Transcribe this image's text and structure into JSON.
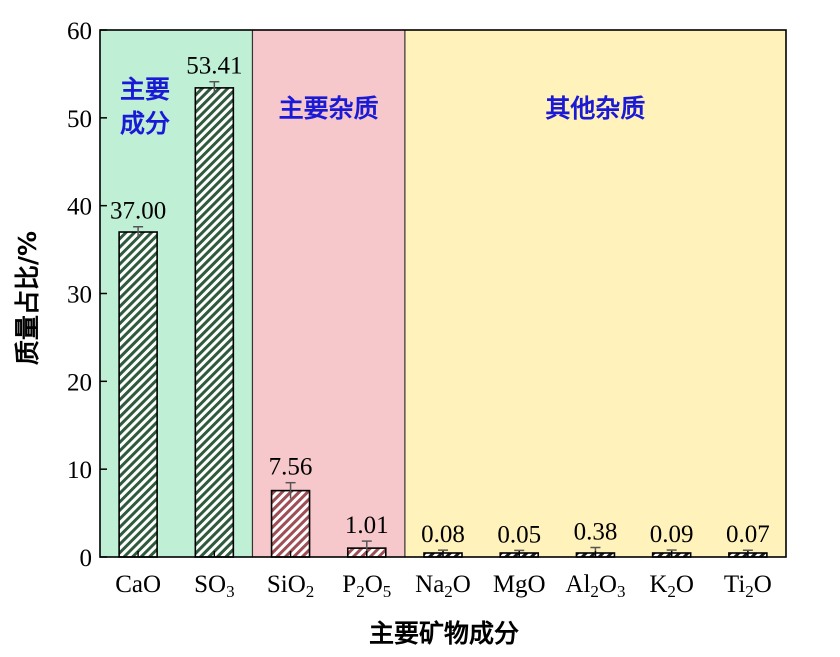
{
  "chart_data": {
    "type": "bar",
    "xlabel": "主要矿物成分",
    "ylabel": "质量占比/%",
    "ylim": [
      0,
      60
    ],
    "yticks": [
      "0",
      "10",
      "20",
      "30",
      "40",
      "50",
      "60"
    ],
    "categories": [
      {
        "base": "CaO",
        "parts": [
          {
            "t": "CaO",
            "sub": false
          }
        ]
      },
      {
        "base": "SO3",
        "parts": [
          {
            "t": "SO",
            "sub": false
          },
          {
            "t": "3",
            "sub": true
          }
        ]
      },
      {
        "base": "SiO2",
        "parts": [
          {
            "t": "SiO",
            "sub": false
          },
          {
            "t": "2",
            "sub": true
          }
        ]
      },
      {
        "base": "P2O5",
        "parts": [
          {
            "t": "P",
            "sub": false
          },
          {
            "t": "2",
            "sub": true
          },
          {
            "t": "O",
            "sub": false
          },
          {
            "t": "5",
            "sub": true
          }
        ]
      },
      {
        "base": "Na2O",
        "parts": [
          {
            "t": "Na",
            "sub": false
          },
          {
            "t": "2",
            "sub": true
          },
          {
            "t": "O",
            "sub": false
          }
        ]
      },
      {
        "base": "MgO",
        "parts": [
          {
            "t": "MgO",
            "sub": false
          }
        ]
      },
      {
        "base": "Al2O3",
        "parts": [
          {
            "t": "Al",
            "sub": false
          },
          {
            "t": "2",
            "sub": true
          },
          {
            "t": "O",
            "sub": false
          },
          {
            "t": "3",
            "sub": true
          }
        ]
      },
      {
        "base": "K2O",
        "parts": [
          {
            "t": "K",
            "sub": false
          },
          {
            "t": "2",
            "sub": true
          },
          {
            "t": "O",
            "sub": false
          }
        ]
      },
      {
        "base": "Ti2O",
        "parts": [
          {
            "t": "Ti",
            "sub": false
          },
          {
            "t": "2",
            "sub": true
          },
          {
            "t": "O",
            "sub": false
          }
        ]
      }
    ],
    "values": [
      37.0,
      53.41,
      7.56,
      1.01,
      0.08,
      0.05,
      0.38,
      0.09,
      0.07
    ],
    "value_labels": [
      "37.00",
      "53.41",
      "7.56",
      "1.01",
      "0.08",
      "0.05",
      "0.38",
      "0.09",
      "0.07"
    ],
    "errors": [
      0.6,
      0.7,
      0.9,
      0.8,
      0.7,
      0.7,
      0.7,
      0.7,
      0.7
    ],
    "regions": [
      {
        "label_lines": [
          "主要",
          "成分"
        ],
        "start": 0,
        "end": 1,
        "color": "#bff0d6"
      },
      {
        "label_lines": [
          "主要杂质"
        ],
        "start": 2,
        "end": 3,
        "color": "#f7c8cb"
      },
      {
        "label_lines": [
          "其他杂质"
        ],
        "start": 4,
        "end": 8,
        "color": "#fff2bb"
      }
    ],
    "colors": {
      "main_hatch": "#2f5a3c",
      "impurity_hatch": "#9e4f55",
      "other_hatch": "#1e1e1e",
      "region_text": "#1a1ad6"
    }
  }
}
